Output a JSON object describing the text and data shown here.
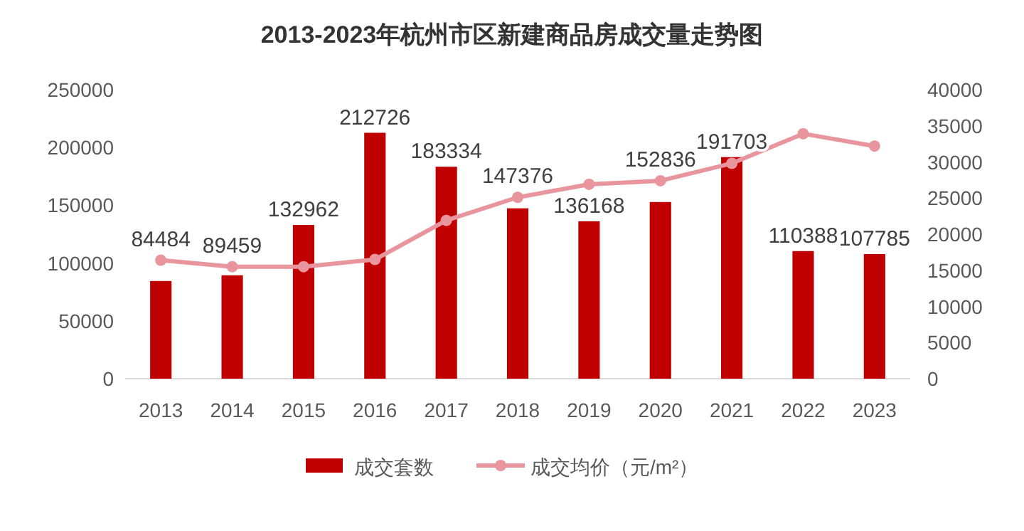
{
  "chart_data": {
    "type": "bar",
    "title": "2013-2023年杭州市区新建商品房成交量走势图",
    "categories": [
      "2013",
      "2014",
      "2015",
      "2016",
      "2017",
      "2018",
      "2019",
      "2020",
      "2021",
      "2022",
      "2023"
    ],
    "series": [
      {
        "name": "成交套数",
        "color": "#c00000",
        "values": [
          84484,
          89459,
          132962,
          212726,
          183334,
          147376,
          136168,
          152836,
          191703,
          110388,
          107785
        ],
        "value_labels": [
          "84484",
          "89459",
          "132962",
          "212726",
          "183334",
          "147376",
          "136168",
          "152836",
          "191703",
          "110388",
          "107785"
        ]
      },
      {
        "name": "成交均价（元/m²）",
        "type": "line",
        "axis": "y2",
        "color": "#e8959d",
        "marker": "circle",
        "values": [
          16400,
          15500,
          15500,
          16500,
          21900,
          25100,
          26900,
          27400,
          29800,
          33900,
          32200
        ]
      }
    ],
    "ylim": [
      0,
      250000
    ],
    "yticks": [
      0,
      50000,
      100000,
      150000,
      200000,
      250000
    ],
    "y2lim": [
      0,
      40000
    ],
    "y2ticks": [
      0,
      5000,
      10000,
      15000,
      20000,
      25000,
      30000,
      35000,
      40000
    ],
    "legend": "bottom",
    "grid": false
  }
}
